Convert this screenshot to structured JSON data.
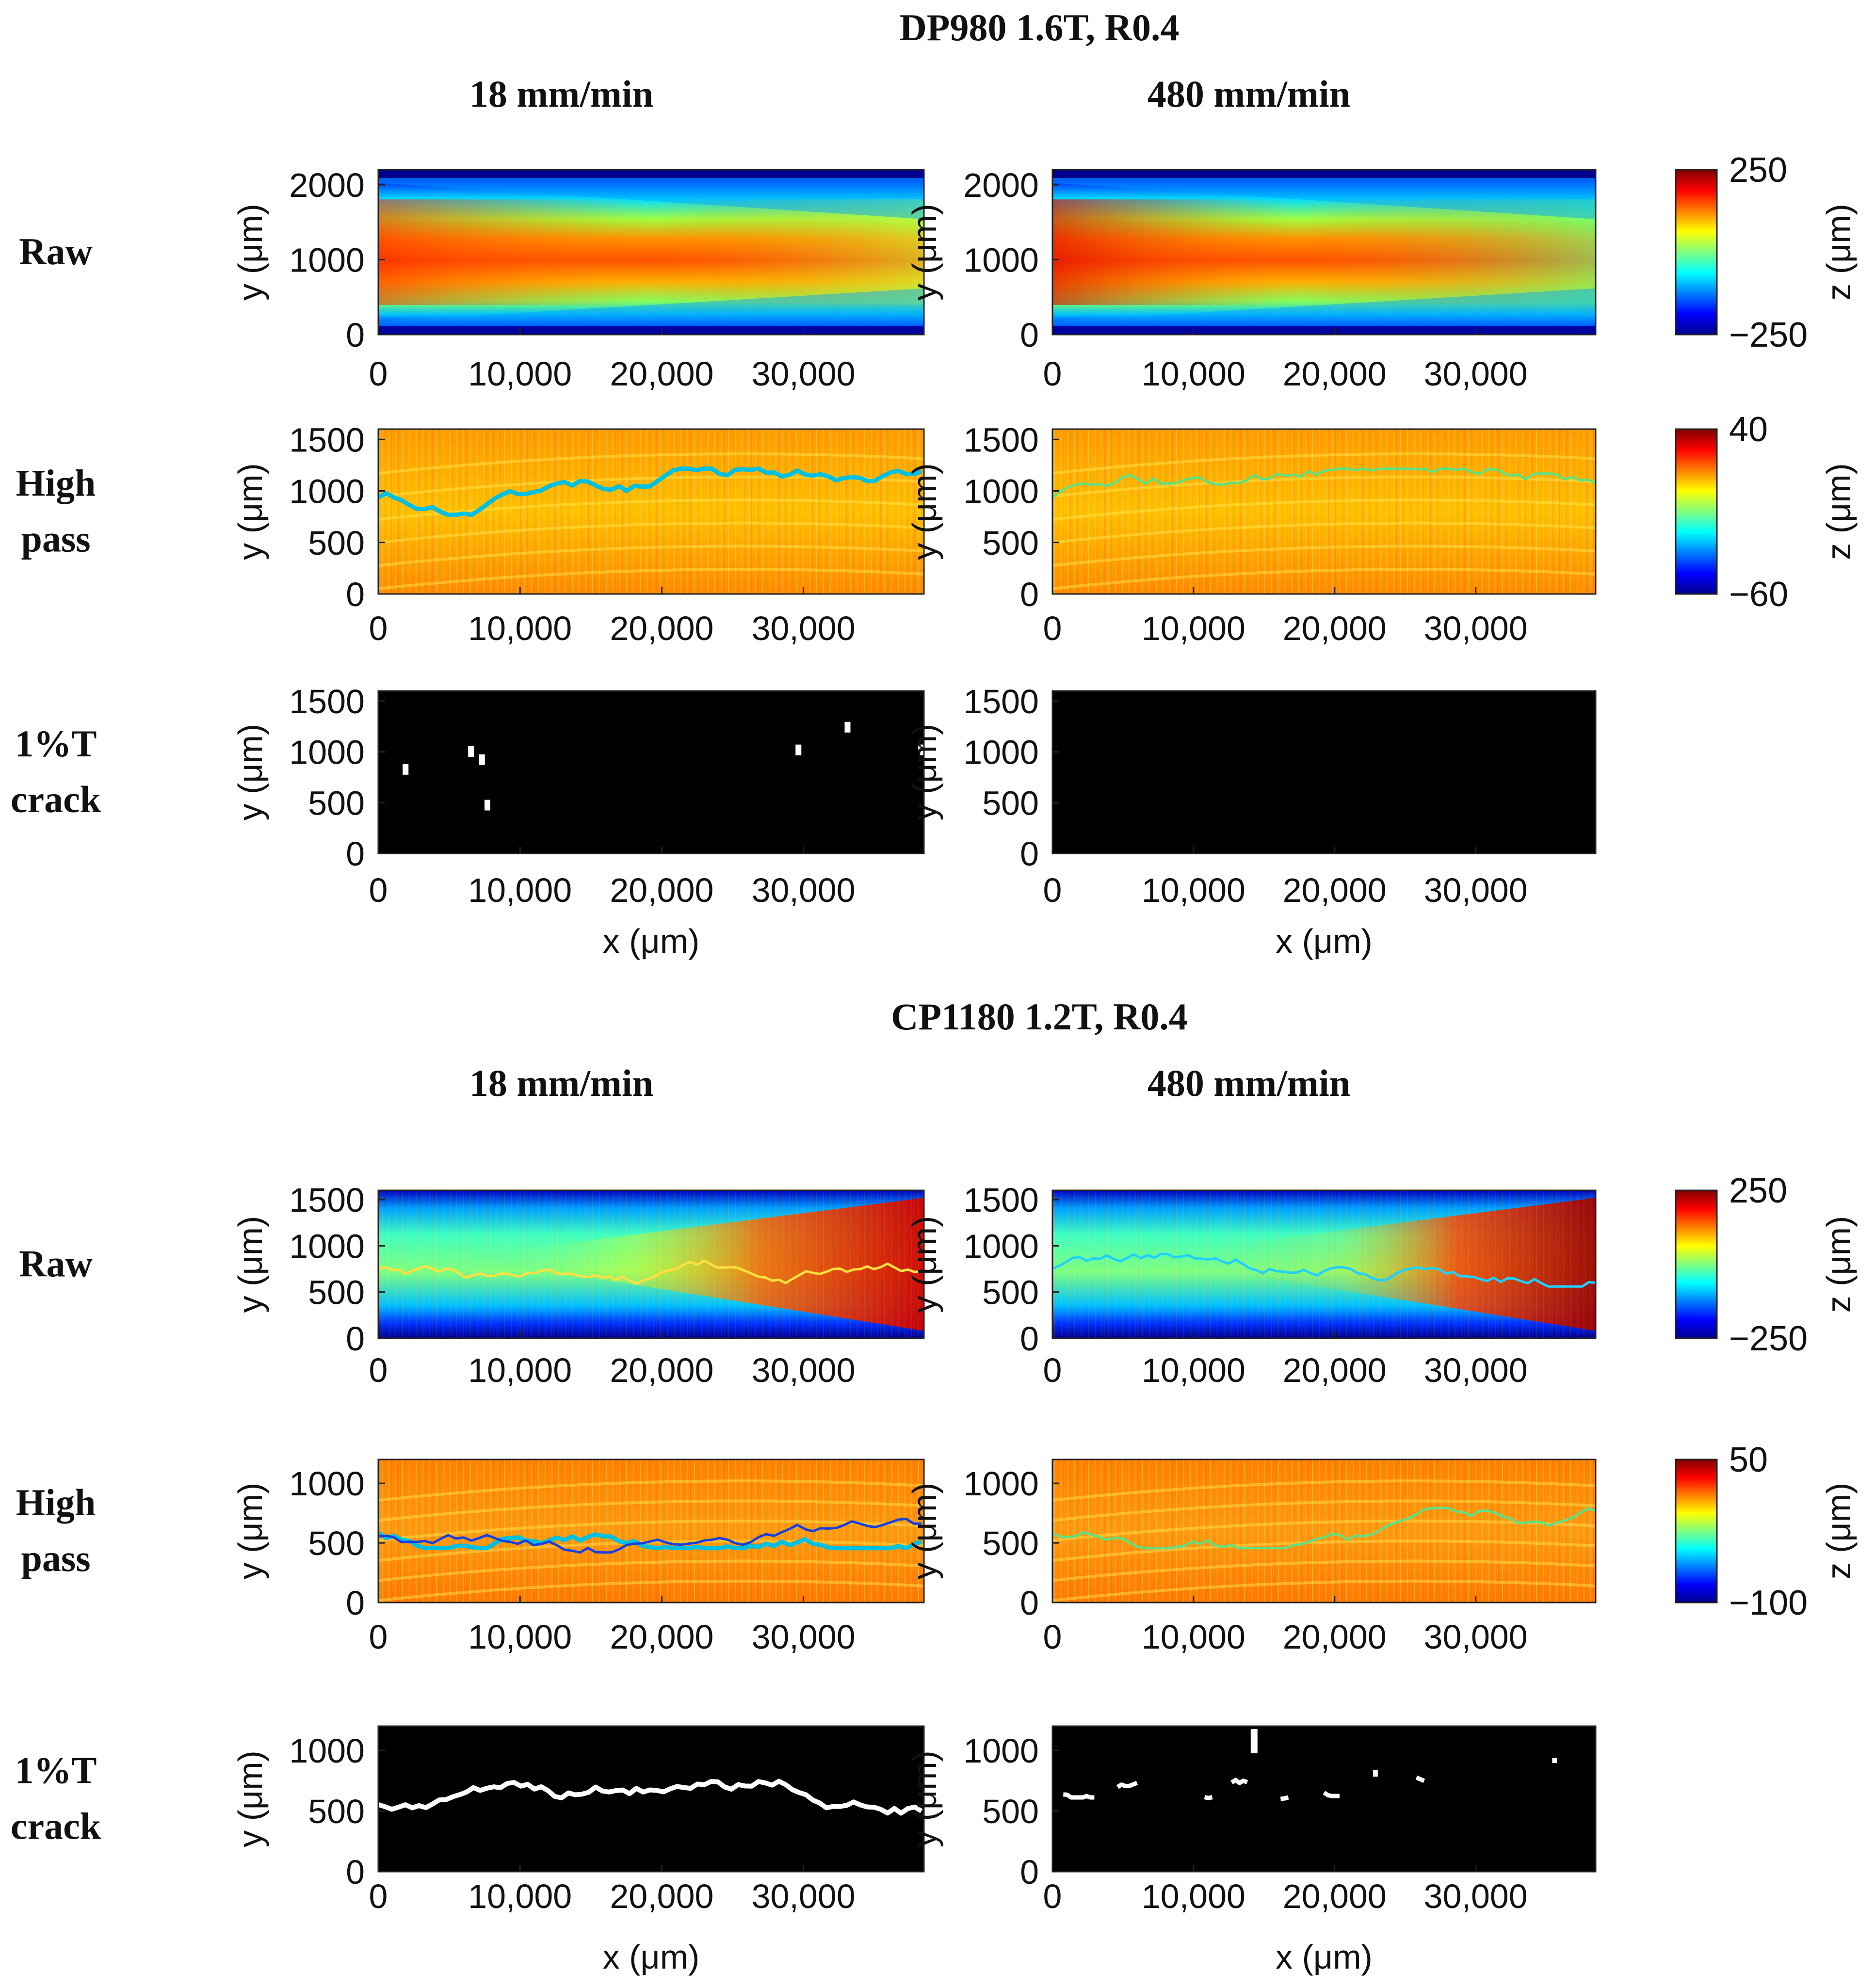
{
  "figure": {
    "sections": [
      {
        "title": "DP980 1.6T, R0.4",
        "columns": [
          "18 mm/min",
          "480 mm/min"
        ],
        "rows": [
          {
            "label_lines": [
              "Raw"
            ],
            "ylabel": "y (μm)",
            "yticks": [
              0,
              1000,
              2000
            ],
            "ylim": [
              0,
              2200
            ],
            "map": "raw",
            "colorbar": {
              "max_label": "250",
              "min_label": "−250",
              "label": "z (μm)"
            }
          },
          {
            "label_lines": [
              "High",
              "pass"
            ],
            "ylabel": "y (μm)",
            "yticks": [
              0,
              500,
              1000,
              1500
            ],
            "ylim": [
              0,
              1600
            ],
            "map": "highpass",
            "colorbar": {
              "max_label": "40",
              "min_label": "−60",
              "label": "z (μm)"
            }
          },
          {
            "label_lines": [
              "1%T",
              "crack"
            ],
            "ylabel": "y (μm)",
            "yticks": [
              0,
              500,
              1000,
              1500
            ],
            "ylim": [
              0,
              1600
            ],
            "map": "crack",
            "xlabel": "x (μm)"
          }
        ]
      },
      {
        "title": "CP1180 1.2T, R0.4",
        "columns": [
          "18 mm/min",
          "480 mm/min"
        ],
        "rows": [
          {
            "label_lines": [
              "Raw"
            ],
            "ylabel": "y (μm)",
            "yticks": [
              0,
              500,
              1000,
              1500
            ],
            "ylim": [
              0,
              1600
            ],
            "map": "raw",
            "colorbar": {
              "max_label": "250",
              "min_label": "−250",
              "label": "z (μm)"
            }
          },
          {
            "label_lines": [
              "High",
              "pass"
            ],
            "ylabel": "y (μm)",
            "yticks": [
              0,
              500,
              1000
            ],
            "ylim": [
              0,
              1200
            ],
            "map": "highpass",
            "colorbar": {
              "max_label": "50",
              "min_label": "−100",
              "label": "z (μm)"
            }
          },
          {
            "label_lines": [
              "1%T",
              "crack"
            ],
            "ylabel": "y (μm)",
            "yticks": [
              0,
              500,
              1000
            ],
            "ylim": [
              0,
              1200
            ],
            "map": "crack",
            "xlabel": "x (μm)"
          }
        ]
      }
    ]
  },
  "chart_data": [
    {
      "type": "heatmap",
      "title": "DP980 1.6T, R0.4 — Raw — 18 mm/min",
      "xlabel": "",
      "ylabel": "y (μm)",
      "xlim": [
        0,
        38500
      ],
      "ylim": [
        0,
        2200
      ],
      "xticks": [
        0,
        10000,
        20000,
        30000
      ],
      "yticks": [
        0,
        1000,
        2000
      ],
      "zlim": [
        -250,
        250
      ],
      "zlabel": "z (μm)"
    },
    {
      "type": "heatmap",
      "title": "DP980 1.6T, R0.4 — Raw — 480 mm/min",
      "xlabel": "",
      "ylabel": "y (μm)",
      "xlim": [
        0,
        38500
      ],
      "ylim": [
        0,
        2200
      ],
      "xticks": [
        0,
        10000,
        20000,
        30000
      ],
      "yticks": [
        0,
        1000,
        2000
      ],
      "zlim": [
        -250,
        250
      ],
      "zlabel": "z (μm)"
    },
    {
      "type": "heatmap",
      "title": "DP980 1.6T, R0.4 — High pass — 18 mm/min",
      "xlabel": "",
      "ylabel": "y (μm)",
      "xlim": [
        0,
        38500
      ],
      "ylim": [
        0,
        1600
      ],
      "xticks": [
        0,
        10000,
        20000,
        30000
      ],
      "yticks": [
        0,
        500,
        1000,
        1500
      ],
      "zlim": [
        -60,
        40
      ],
      "zlabel": "z (μm)"
    },
    {
      "type": "heatmap",
      "title": "DP980 1.6T, R0.4 — High pass — 480 mm/min",
      "xlabel": "",
      "ylabel": "y (μm)",
      "xlim": [
        0,
        38500
      ],
      "ylim": [
        0,
        1600
      ],
      "xticks": [
        0,
        10000,
        20000,
        30000
      ],
      "yticks": [
        0,
        500,
        1000,
        1500
      ],
      "zlim": [
        -60,
        40
      ],
      "zlabel": "z (μm)"
    },
    {
      "type": "heatmap",
      "title": "DP980 1.6T, R0.4 — 1%T crack — 18 mm/min",
      "xlabel": "x (μm)",
      "ylabel": "y (μm)",
      "xlim": [
        0,
        38500
      ],
      "ylim": [
        0,
        1600
      ],
      "xticks": [
        0,
        10000,
        20000,
        30000
      ],
      "yticks": [
        0,
        500,
        1000,
        1500
      ],
      "binary": true
    },
    {
      "type": "heatmap",
      "title": "DP980 1.6T, R0.4 — 1%T crack — 480 mm/min",
      "xlabel": "x (μm)",
      "ylabel": "y (μm)",
      "xlim": [
        0,
        38500
      ],
      "ylim": [
        0,
        1600
      ],
      "xticks": [
        0,
        10000,
        20000,
        30000
      ],
      "yticks": [
        0,
        500,
        1000,
        1500
      ],
      "binary": true
    },
    {
      "type": "heatmap",
      "title": "CP1180 1.2T, R0.4 — Raw — 18 mm/min",
      "xlabel": "",
      "ylabel": "y (μm)",
      "xlim": [
        0,
        38500
      ],
      "ylim": [
        0,
        1600
      ],
      "xticks": [
        0,
        10000,
        20000,
        30000
      ],
      "yticks": [
        0,
        500,
        1000,
        1500
      ],
      "zlim": [
        -250,
        250
      ],
      "zlabel": "z (μm)"
    },
    {
      "type": "heatmap",
      "title": "CP1180 1.2T, R0.4 — Raw — 480 mm/min",
      "xlabel": "",
      "ylabel": "y (μm)",
      "xlim": [
        0,
        38500
      ],
      "ylim": [
        0,
        1600
      ],
      "xticks": [
        0,
        10000,
        20000,
        30000
      ],
      "yticks": [
        0,
        500,
        1000,
        1500
      ],
      "zlim": [
        -250,
        250
      ],
      "zlabel": "z (μm)"
    },
    {
      "type": "heatmap",
      "title": "CP1180 1.2T, R0.4 — High pass — 18 mm/min",
      "xlabel": "",
      "ylabel": "y (μm)",
      "xlim": [
        0,
        38500
      ],
      "ylim": [
        0,
        1200
      ],
      "xticks": [
        0,
        10000,
        20000,
        30000
      ],
      "yticks": [
        0,
        500,
        1000
      ],
      "zlim": [
        -100,
        50
      ],
      "zlabel": "z (μm)"
    },
    {
      "type": "heatmap",
      "title": "CP1180 1.2T, R0.4 — High pass — 480 mm/min",
      "xlabel": "",
      "ylabel": "y (μm)",
      "xlim": [
        0,
        38500
      ],
      "ylim": [
        0,
        1200
      ],
      "xticks": [
        0,
        10000,
        20000,
        30000
      ],
      "yticks": [
        0,
        500,
        1000
      ],
      "zlim": [
        -100,
        50
      ],
      "zlabel": "z (μm)"
    },
    {
      "type": "heatmap",
      "title": "CP1180 1.2T, R0.4 — 1%T crack — 18 mm/min",
      "xlabel": "x (μm)",
      "ylabel": "y (μm)",
      "xlim": [
        0,
        38500
      ],
      "ylim": [
        0,
        1200
      ],
      "xticks": [
        0,
        10000,
        20000,
        30000
      ],
      "yticks": [
        0,
        500,
        1000
      ],
      "binary": true
    },
    {
      "type": "heatmap",
      "title": "CP1180 1.2T, R0.4 — 1%T crack — 480 mm/min",
      "xlabel": "x (μm)",
      "ylabel": "y (μm)",
      "xlim": [
        0,
        38500
      ],
      "ylim": [
        0,
        1200
      ],
      "xticks": [
        0,
        10000,
        20000,
        30000
      ],
      "yticks": [
        0,
        500,
        1000
      ],
      "binary": true
    }
  ]
}
